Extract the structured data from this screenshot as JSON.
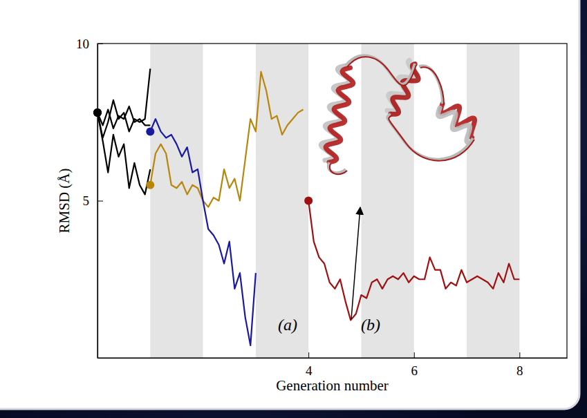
{
  "chart_data": {
    "type": "line",
    "x_label": "Generation number",
    "y_label": "RMSD (Å)",
    "xlim": [
      0,
      8.9
    ],
    "ylim": [
      0,
      10
    ],
    "xticks": [
      4,
      6,
      8
    ],
    "yticks": [
      5,
      10
    ],
    "bands": [
      [
        1,
        2
      ],
      [
        3,
        4
      ],
      [
        5,
        6
      ],
      [
        7,
        8
      ]
    ],
    "annotations": [
      "(a)",
      "(b)"
    ],
    "series": [
      {
        "color": "#000000",
        "marker": "start",
        "x": [
          0,
          0.1,
          0.2,
          0.3,
          0.4,
          0.5,
          0.6,
          0.7,
          0.8,
          0.9,
          1.0
        ],
        "values": [
          7.8,
          7.4,
          7.9,
          7.3,
          7.7,
          7.6,
          8.0,
          7.5,
          7.6,
          7.4,
          7.4
        ]
      },
      {
        "color": "#000000",
        "marker": "start",
        "x": [
          0,
          0.1,
          0.2,
          0.3,
          0.4,
          0.5,
          0.6,
          0.7,
          0.8,
          0.9,
          1.0
        ],
        "values": [
          7.8,
          7.0,
          7.5,
          8.2,
          7.6,
          7.8,
          7.2,
          7.6,
          7.5,
          7.6,
          9.2
        ]
      },
      {
        "color": "#000000",
        "marker": "start",
        "x": [
          0,
          0.1,
          0.2,
          0.3,
          0.4,
          0.5,
          0.6,
          0.7,
          0.8,
          0.9,
          1.0
        ],
        "values": [
          7.8,
          6.9,
          5.9,
          7.1,
          6.4,
          6.8,
          5.4,
          6.2,
          5.5,
          5.2,
          6.0
        ]
      },
      {
        "color": "#b8860b",
        "marker": "start",
        "x": [
          1.0,
          1.1,
          1.2,
          1.3,
          1.4,
          1.5,
          1.6,
          1.7,
          1.8,
          1.9,
          2.0,
          2.1,
          2.2,
          2.3,
          2.4,
          2.5,
          2.6,
          2.7,
          2.8,
          2.9,
          3.0,
          3.1,
          3.2,
          3.3,
          3.4,
          3.5,
          3.6,
          3.7,
          3.8,
          3.9
        ],
        "values": [
          5.5,
          6.5,
          6.8,
          6.5,
          5.5,
          5.4,
          5.6,
          5.2,
          5.5,
          5.4,
          5.0,
          4.8,
          5.1,
          5.0,
          6.0,
          5.4,
          5.7,
          5.0,
          6.3,
          7.6,
          7.2,
          9.1,
          8.5,
          7.6,
          7.7,
          7.1,
          7.4,
          7.6,
          7.8,
          7.9
        ]
      },
      {
        "color": "#1a1aa0",
        "marker": "start",
        "x": [
          1.0,
          1.1,
          1.2,
          1.3,
          1.4,
          1.5,
          1.6,
          1.7,
          1.8,
          1.9,
          2.0,
          2.1,
          2.2,
          2.3,
          2.4,
          2.5,
          2.6,
          2.7,
          2.8,
          2.9,
          3.0
        ],
        "values": [
          7.2,
          7.6,
          7.2,
          7.0,
          7.1,
          6.8,
          6.4,
          6.7,
          5.9,
          6.0,
          5.0,
          4.1,
          3.9,
          3.6,
          3.0,
          3.7,
          2.2,
          2.7,
          1.3,
          0.4,
          2.7
        ]
      },
      {
        "color": "#a01010",
        "marker": "start",
        "x": [
          4.0,
          4.1,
          4.2,
          4.3,
          4.4,
          4.5,
          4.6,
          4.7,
          4.8,
          4.9,
          5.0,
          5.1,
          5.2,
          5.3,
          5.4,
          5.5,
          5.6,
          5.7,
          5.8,
          5.9,
          6.0,
          6.1,
          6.2,
          6.3,
          6.4,
          6.5,
          6.6,
          6.7,
          6.8,
          6.9,
          7.0,
          7.1,
          7.2,
          7.3,
          7.4,
          7.5,
          7.6,
          7.7,
          7.8,
          7.9,
          8.0
        ],
        "values": [
          5.0,
          3.7,
          3.2,
          3.0,
          2.4,
          2.2,
          2.5,
          1.8,
          1.2,
          1.4,
          2.0,
          1.9,
          2.4,
          2.5,
          2.2,
          2.5,
          2.6,
          2.5,
          2.7,
          2.4,
          2.6,
          2.5,
          2.5,
          3.2,
          2.8,
          2.8,
          2.2,
          2.4,
          2.3,
          2.8,
          2.4,
          2.5,
          2.6,
          2.5,
          2.4,
          2.2,
          2.7,
          2.4,
          3.0,
          2.5,
          2.5
        ]
      }
    ]
  }
}
